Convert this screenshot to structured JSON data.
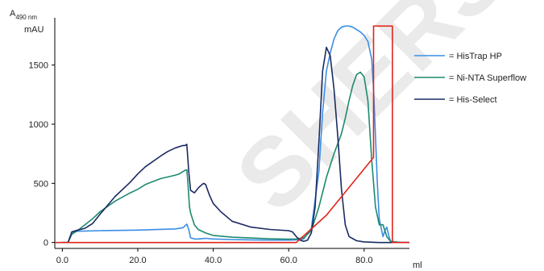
{
  "chart_data": {
    "type": "line",
    "title": "",
    "ylabel_main": "A",
    "ylabel_sub": "490 nm",
    "yunit": "mAU",
    "xunit": "ml",
    "xlim": [
      -2,
      92
    ],
    "ylim": [
      -50,
      1900
    ],
    "xticks": [
      0,
      20,
      40,
      60,
      80
    ],
    "xtick_labels": [
      "0.0",
      "20.0",
      "40.0",
      "60.0",
      "80.0"
    ],
    "yticks": [
      0,
      500,
      1000,
      1500
    ],
    "ytick_labels": [
      "0",
      "500",
      "1000",
      "1500"
    ],
    "grid": false,
    "legend_position": "right",
    "series": [
      {
        "name": "= HisTrap HP",
        "color": "#3a8ee6",
        "x": [
          0,
          1.5,
          2.5,
          4,
          10,
          20,
          30,
          32,
          33,
          33.5,
          34,
          35,
          36,
          38,
          40,
          45,
          50,
          55,
          60,
          62,
          64,
          66,
          68,
          69,
          70,
          71,
          72,
          73,
          74,
          75,
          76,
          77,
          78,
          79,
          80,
          81,
          82,
          82.5,
          83,
          83.5,
          84,
          85,
          85.5,
          86,
          86.5,
          87,
          88,
          90,
          92
        ],
        "y": [
          0,
          0,
          80,
          95,
          100,
          105,
          115,
          125,
          155,
          110,
          40,
          30,
          30,
          35,
          30,
          25,
          22,
          20,
          20,
          22,
          30,
          120,
          600,
          1100,
          1450,
          1600,
          1720,
          1790,
          1820,
          1830,
          1830,
          1820,
          1800,
          1780,
          1750,
          1700,
          1550,
          1300,
          900,
          500,
          200,
          50,
          100,
          130,
          60,
          10,
          5,
          0,
          0
        ]
      },
      {
        "name": "= Ni-NTA Superflow",
        "color": "#1e8a6e",
        "x": [
          0,
          1.5,
          2.5,
          4,
          6,
          8,
          10,
          14,
          18,
          20,
          22,
          26,
          30,
          31,
          32,
          32.5,
          33,
          33.3,
          33.7,
          34,
          35,
          36,
          38,
          40,
          45,
          50,
          55,
          60,
          62,
          64,
          66,
          68,
          70,
          72,
          74,
          75,
          76,
          77,
          78,
          79,
          80,
          81,
          82,
          83,
          84,
          85,
          86,
          87,
          88,
          90,
          92
        ],
        "y": [
          0,
          0,
          70,
          100,
          150,
          200,
          260,
          350,
          420,
          450,
          490,
          540,
          570,
          580,
          600,
          610,
          615,
          500,
          300,
          250,
          150,
          110,
          80,
          60,
          45,
          38,
          32,
          28,
          30,
          40,
          100,
          300,
          550,
          750,
          920,
          1050,
          1200,
          1330,
          1420,
          1440,
          1400,
          1200,
          700,
          300,
          150,
          150,
          50,
          10,
          5,
          0,
          0
        ]
      },
      {
        "name": "= His-Select",
        "color": "#1b2b62",
        "x": [
          0,
          1.5,
          2.5,
          4,
          6,
          8,
          10,
          14,
          18,
          20,
          22,
          26,
          28,
          30,
          32,
          32.5,
          33,
          33.5,
          34,
          35,
          36,
          37,
          37.5,
          38,
          39,
          40,
          42,
          45,
          50,
          55,
          60,
          61,
          62,
          63,
          64,
          65,
          66,
          67,
          68,
          69,
          70,
          71,
          72,
          73,
          74,
          75,
          76,
          78,
          80,
          84,
          92
        ],
        "y": [
          0,
          0,
          90,
          105,
          120,
          160,
          240,
          390,
          510,
          580,
          640,
          730,
          770,
          800,
          820,
          820,
          830,
          600,
          440,
          420,
          460,
          490,
          500,
          490,
          400,
          330,
          260,
          180,
          130,
          110,
          100,
          90,
          50,
          20,
          10,
          20,
          80,
          300,
          850,
          1450,
          1650,
          1580,
          1300,
          900,
          450,
          150,
          50,
          15,
          5,
          0,
          0
        ]
      },
      {
        "name": "",
        "color": "#e0241b",
        "x": [
          -2,
          62,
          70,
          82.5,
          82.5,
          87.5,
          87.5,
          92
        ],
        "y": [
          0,
          0,
          230,
          720,
          1830,
          1830,
          0,
          0
        ]
      }
    ]
  },
  "legend": [
    {
      "label": "= HisTrap HP",
      "color": "#3a8ee6"
    },
    {
      "label": "= Ni-NTA Superflow",
      "color": "#1e8a6e"
    },
    {
      "label": "= His-Select",
      "color": "#1b2b62"
    }
  ],
  "watermark_text": "SHERS"
}
